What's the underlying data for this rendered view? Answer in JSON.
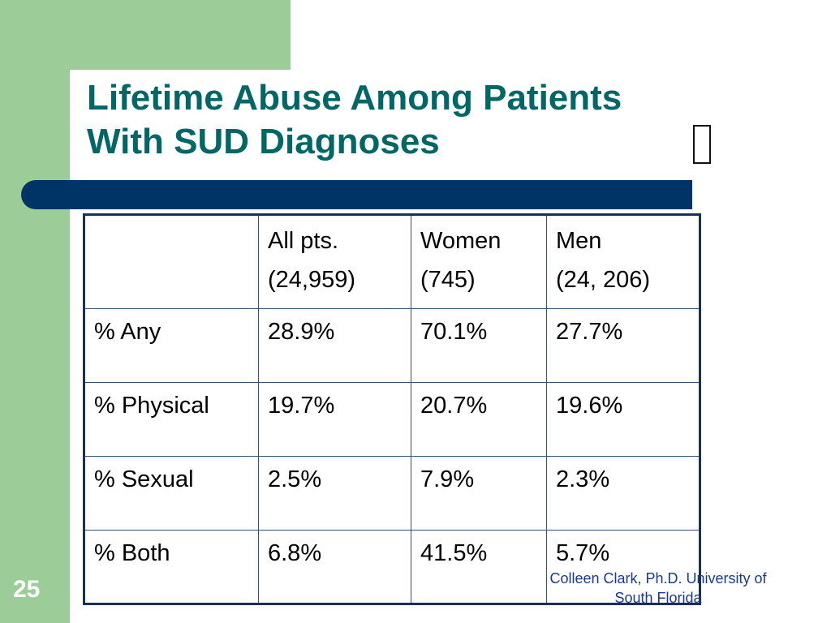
{
  "slide": {
    "title_line1": "Lifetime Abuse Among Patients",
    "title_line2": "With SUD Diagnoses",
    "slide_number": "25",
    "footer": "Colleen Clark, Ph.D. University of South Florida"
  },
  "table": {
    "headers": [
      {
        "line1": "",
        "line2": ""
      },
      {
        "line1": "All pts.",
        "line2": "(24,959)"
      },
      {
        "line1": "Women",
        "line2": "(745)"
      },
      {
        "line1": "Men",
        "line2": "(24, 206)"
      }
    ],
    "rows": [
      [
        "% Any",
        "28.9%",
        "70.1%",
        "27.7%"
      ],
      [
        "% Physical",
        "19.7%",
        "20.7%",
        "19.6%"
      ],
      [
        "% Sexual",
        "2.5%",
        "7.9%",
        "2.3%"
      ],
      [
        "% Both",
        "6.8%",
        "41.5%",
        "5.7%"
      ]
    ]
  },
  "colors": {
    "title": "#006666",
    "accent_green": "#9ccc97",
    "bar_navy": "#003366",
    "footer_text": "#1a3a8c"
  }
}
